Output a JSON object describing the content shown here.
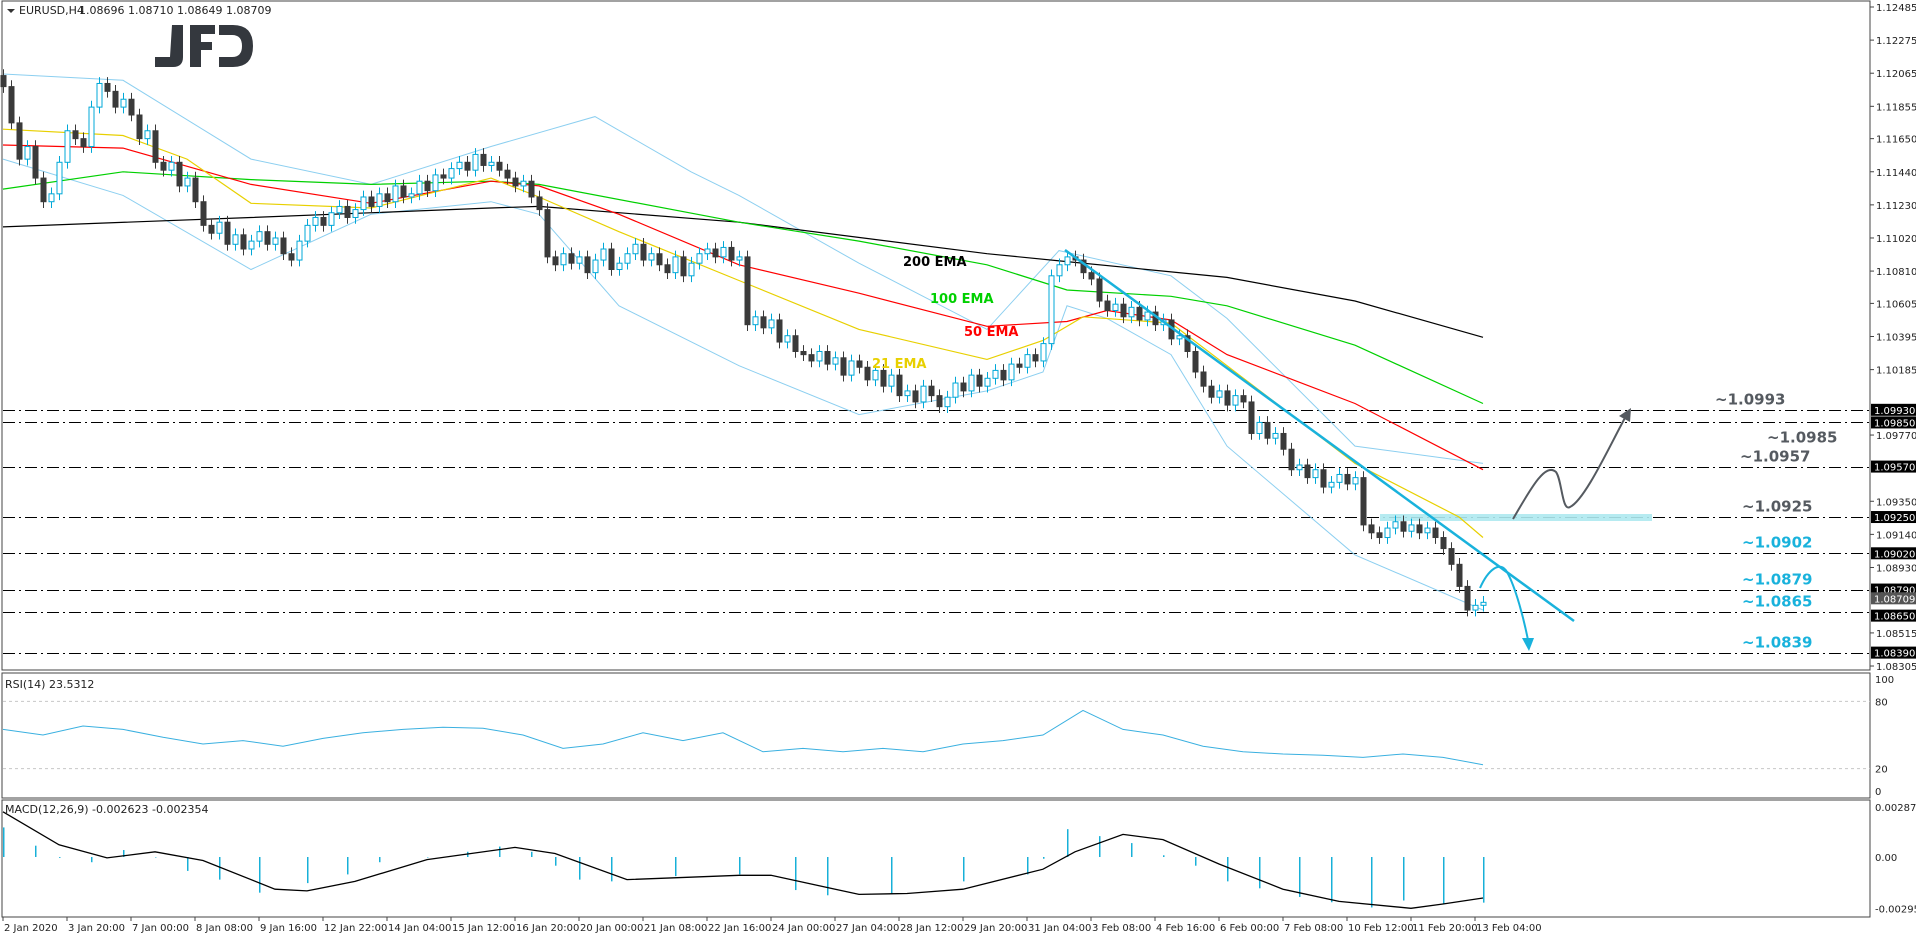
{
  "header": {
    "symbol_timeframe": "EURUSD,H4",
    "ohlc": "1.08696 1.08710 1.08649 1.08709",
    "menu_icon": "triangle-down-icon"
  },
  "logo": "JFD",
  "colors": {
    "bull": "#00a8d8",
    "bear": "#3a3a3a",
    "bands": "#8ccff0",
    "ema21": "#e8d000",
    "ema50": "#ff0000",
    "ema100": "#00d000",
    "ema200": "#000000",
    "resistance_text": "#555a60",
    "support_text": "#19b2dc",
    "zone": "#aee9ef",
    "rsi": "#3ab0e0",
    "macd_hist": "#18b0d8"
  },
  "chart_data": [
    {
      "type": "candlestick",
      "title": "EURUSD,H4",
      "ylim": [
        1.08305,
        1.12485
      ],
      "y_ticks": [
        "1.12485",
        "1.12275",
        "1.12065",
        "1.11855",
        "1.11650",
        "1.11440",
        "1.11230",
        "1.11020",
        "1.10810",
        "1.10605",
        "1.10395",
        "1.10185",
        "1.09770",
        "1.09350",
        "1.09140",
        "1.08930",
        "1.08515",
        "1.08305"
      ],
      "x_ticks": [
        "2 Jan 2020",
        "3 Jan 20:00",
        "7 Jan 00:00",
        "8 Jan 08:00",
        "9 Jan 16:00",
        "12 Jan 22:00",
        "14 Jan 04:00",
        "15 Jan 12:00",
        "16 Jan 20:00",
        "20 Jan 00:00",
        "21 Jan 08:00",
        "22 Jan 16:00",
        "24 Jan 00:00",
        "27 Jan 04:00",
        "28 Jan 12:00",
        "29 Jan 20:00",
        "31 Jan 04:00",
        "3 Feb 08:00",
        "4 Feb 16:00",
        "6 Feb 00:00",
        "7 Feb 08:00",
        "10 Feb 12:00",
        "11 Feb 20:00",
        "13 Feb 04:00"
      ],
      "closes": [
        1.1198,
        1.1175,
        1.1152,
        1.116,
        1.114,
        1.1125,
        1.113,
        1.115,
        1.117,
        1.1165,
        1.116,
        1.1185,
        1.12,
        1.1195,
        1.1185,
        1.119,
        1.118,
        1.1165,
        1.117,
        1.115,
        1.1145,
        1.115,
        1.1135,
        1.114,
        1.1125,
        1.111,
        1.1105,
        1.1112,
        1.1098,
        1.1104,
        1.1095,
        1.11,
        1.1106,
        1.1098,
        1.1102,
        1.1092,
        1.1088,
        1.11,
        1.111,
        1.1115,
        1.111,
        1.1118,
        1.1122,
        1.1115,
        1.112,
        1.1128,
        1.1122,
        1.113,
        1.1125,
        1.1135,
        1.1128,
        1.113,
        1.1138,
        1.1132,
        1.1142,
        1.114,
        1.1146,
        1.115,
        1.1145,
        1.1155,
        1.1148,
        1.115,
        1.1145,
        1.114,
        1.1135,
        1.1138,
        1.1128,
        1.112,
        1.109,
        1.1085,
        1.1092,
        1.1086,
        1.109,
        1.108,
        1.1088,
        1.1095,
        1.1082,
        1.1086,
        1.1092,
        1.1098,
        1.1088,
        1.1092,
        1.1085,
        1.108,
        1.109,
        1.1078,
        1.1086,
        1.1092,
        1.1095,
        1.109,
        1.1096,
        1.1088,
        1.109,
        1.1047,
        1.1052,
        1.1045,
        1.105,
        1.1036,
        1.104,
        1.103,
        1.1028,
        1.1024,
        1.103,
        1.1022,
        1.1026,
        1.1015,
        1.1024,
        1.102,
        1.1012,
        1.1018,
        1.1008,
        1.1015,
        1.1002,
        1.1005,
        1.0998,
        1.1008,
        1.1002,
        1.0995,
        1.1001,
        1.101,
        1.1005,
        1.1015,
        1.1008,
        1.1013,
        1.1018,
        1.1012,
        1.1022,
        1.102,
        1.1028,
        1.1024,
        1.1035,
        1.1078,
        1.1085,
        1.109,
        1.1088,
        1.108,
        1.1076,
        1.1062,
        1.1056,
        1.106,
        1.1052,
        1.1058,
        1.105,
        1.1055,
        1.1047,
        1.105,
        1.1038,
        1.104,
        1.103,
        1.1017,
        1.1008,
        1.1001,
        1.1005,
        1.0996,
        1.1002,
        1.0998,
        1.0978,
        1.0985,
        1.0975,
        1.0978,
        1.0968,
        1.0955,
        1.0958,
        1.095,
        1.0955,
        1.0944,
        1.0947,
        1.0952,
        1.0946,
        1.095,
        1.092,
        1.0915,
        1.0912,
        1.0918,
        1.0922,
        1.0916,
        1.092,
        1.0915,
        1.0918,
        1.0912,
        1.0905,
        1.0895,
        1.0881,
        1.0866,
        1.0869,
        1.08709
      ],
      "moving_averages": [
        {
          "name": "200 EMA",
          "color": "#000000",
          "bars": [
            0,
            31,
            61,
            67,
            92,
            123,
            133,
            153,
            169,
            185
          ],
          "values": [
            1.1109,
            1.1115,
            1.1121,
            1.1122,
            1.1112,
            1.1092,
            1.1087,
            1.1077,
            1.1062,
            1.1039
          ]
        },
        {
          "name": "100 EMA",
          "color": "#00d000",
          "bars": [
            0,
            15,
            31,
            46,
            61,
            67,
            92,
            107,
            123,
            133,
            146,
            153,
            169,
            185
          ],
          "values": [
            1.1133,
            1.1144,
            1.1139,
            1.1136,
            1.1138,
            1.1136,
            1.1112,
            1.11,
            1.1085,
            1.1069,
            1.1065,
            1.1059,
            1.1034,
            1.0997
          ]
        },
        {
          "name": "50 EMA",
          "color": "#ff0000",
          "bars": [
            0,
            15,
            31,
            46,
            61,
            67,
            77,
            92,
            107,
            123,
            133,
            138,
            146,
            153,
            169,
            185
          ],
          "values": [
            1.1161,
            1.1159,
            1.1136,
            1.1124,
            1.1138,
            1.1135,
            1.1117,
            1.1085,
            1.1067,
            1.1046,
            1.1049,
            1.1056,
            1.105,
            1.1028,
            1.0997,
            1.0955
          ]
        },
        {
          "name": "21 EMA",
          "color": "#e8d000",
          "bars": [
            0,
            15,
            23,
            31,
            46,
            61,
            67,
            77,
            92,
            107,
            123,
            130,
            135,
            146,
            153,
            169,
            182,
            185
          ],
          "values": [
            1.1171,
            1.1167,
            1.1152,
            1.1124,
            1.1121,
            1.114,
            1.1128,
            1.1106,
            1.1075,
            1.1044,
            1.1025,
            1.1037,
            1.1052,
            1.1048,
            1.1021,
            1.0959,
            1.0925,
            1.0912
          ]
        }
      ],
      "bands": {
        "upper": {
          "bars": [
            0,
            15,
            31,
            46,
            61,
            74,
            86,
            92,
            107,
            123,
            132,
            146,
            153,
            169,
            185
          ],
          "values": [
            1.1206,
            1.1202,
            1.1152,
            1.1136,
            1.116,
            1.1179,
            1.1144,
            1.1129,
            1.1086,
            1.1044,
            1.1094,
            1.1078,
            1.1051,
            1.097,
            1.0959
          ]
        },
        "lower": {
          "bars": [
            0,
            15,
            31,
            46,
            61,
            67,
            77,
            92,
            107,
            123,
            130,
            133,
            138,
            146,
            153,
            169,
            185
          ],
          "values": [
            1.1152,
            1.1129,
            1.1082,
            1.1117,
            1.1125,
            1.1117,
            1.1059,
            1.1021,
            1.099,
            1.1005,
            1.1017,
            1.1059,
            1.1051,
            1.1028,
            1.097,
            1.0901,
            1.0866
          ]
        }
      },
      "levels": [
        {
          "price": 1.0993,
          "label": "~1.0993",
          "tag": "1.09930",
          "kind": "resistance"
        },
        {
          "price": 1.0985,
          "label": "~1.0985",
          "tag": "1.09850",
          "kind": "resistance"
        },
        {
          "price": 1.0957,
          "label": "~1.0957",
          "tag": "1.09570",
          "kind": "resistance"
        },
        {
          "price": 1.0925,
          "label": "~1.0925",
          "tag": "1.09250",
          "kind": "resistance"
        },
        {
          "price": 1.0902,
          "label": "~1.0902",
          "tag": "1.09020",
          "kind": "support"
        },
        {
          "price": 1.0879,
          "label": "~1.0879",
          "tag": "1.08790",
          "kind": "support"
        },
        {
          "price": 1.0865,
          "label": "~1.0865",
          "tag": "1.08650",
          "kind": "support"
        },
        {
          "price": 1.0839,
          "label": "~1.0839",
          "tag": "1.08390",
          "kind": "support"
        }
      ],
      "current_price": "1.08709"
    },
    {
      "type": "line",
      "title": "RSI(14) 23.5312",
      "ylim": [
        0,
        100
      ],
      "y_ticks": [
        "100",
        "80",
        "20",
        "0"
      ],
      "bars": [
        0,
        5,
        10,
        15,
        20,
        25,
        30,
        35,
        40,
        45,
        50,
        55,
        60,
        65,
        70,
        75,
        80,
        85,
        90,
        95,
        100,
        105,
        110,
        115,
        120,
        125,
        130,
        135,
        140,
        145,
        150,
        155,
        160,
        165,
        170,
        175,
        180,
        185
      ],
      "values": [
        55,
        50,
        58,
        55,
        48,
        42,
        45,
        40,
        47,
        52,
        55,
        57,
        56,
        50,
        38,
        42,
        52,
        45,
        52,
        35,
        38,
        35,
        38,
        35,
        42,
        45,
        50,
        72,
        55,
        50,
        40,
        35,
        33,
        32,
        30,
        33,
        30,
        23.5
      ]
    },
    {
      "type": "bar+line",
      "title": "MACD(12,26,9) -0.002623 -0.002354",
      "ylim": [
        -0.002957,
        0.002873
      ],
      "y_ticks": [
        "0.002873",
        "0.00",
        "-0.002957"
      ],
      "histogram": {
        "bars": [
          0,
          4,
          7,
          11,
          15,
          19,
          23,
          27,
          32,
          38,
          43,
          47,
          53,
          58,
          62,
          66,
          69,
          72,
          76,
          84,
          92,
          99,
          103,
          111,
          120,
          128,
          130,
          133,
          137,
          141,
          145,
          149,
          153,
          157,
          162,
          166,
          171,
          175,
          180,
          185
        ],
        "values": [
          0.0017,
          0.00065,
          -5e-05,
          -0.0003,
          0.0004,
          0,
          -0.0008,
          -0.0013,
          -0.00205,
          -0.0015,
          -0.001,
          -0.0003,
          0,
          0.0003,
          0.0006,
          0.0003,
          -0.0005,
          -0.0013,
          -0.0014,
          -0.0011,
          -0.001,
          -0.0019,
          -0.0022,
          -0.0021,
          -0.0014,
          -0.001,
          -0.0001,
          0.0016,
          0.0012,
          0.0008,
          0.0001,
          -0.0005,
          -0.0014,
          -0.0018,
          -0.0023,
          -0.0026,
          -0.0029,
          -0.0025,
          -0.0027,
          -0.002623
        ]
      },
      "signal": {
        "bars": [
          0,
          7,
          13,
          19,
          25,
          34,
          38,
          44,
          53,
          64,
          69,
          78,
          92,
          96,
          107,
          113,
          120,
          130,
          134,
          140,
          145,
          152,
          160,
          167,
          176,
          180,
          185
        ],
        "values": [
          0.0026,
          0.0007,
          -5e-05,
          0.0003,
          -0.0002,
          -0.00185,
          -0.00195,
          -0.0014,
          -0.00015,
          0.00055,
          0.0002,
          -0.0013,
          -0.00105,
          -0.00105,
          -0.00215,
          -0.0021,
          -0.00185,
          -0.0007,
          0.0003,
          0.0013,
          0.001,
          -0.0004,
          -0.00185,
          -0.00255,
          -0.00295,
          -0.0027,
          -0.002354
        ]
      }
    }
  ]
}
